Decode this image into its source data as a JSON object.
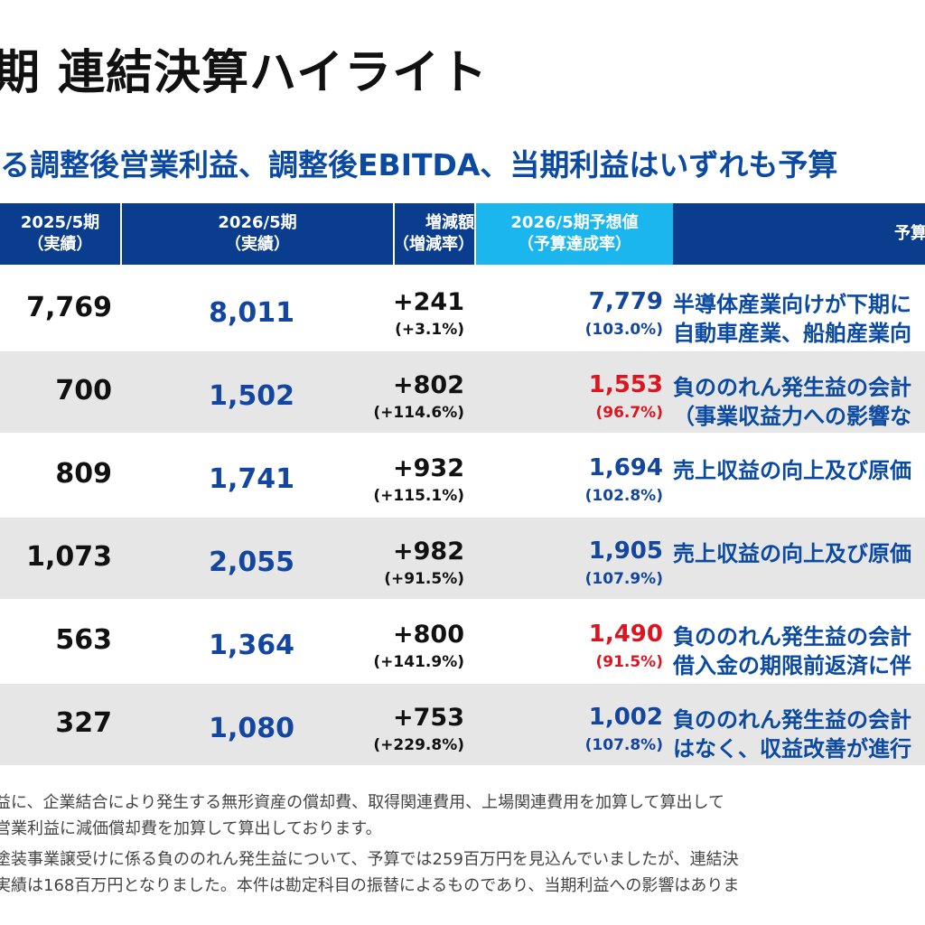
{
  "title": "期 連結決算ハイライト",
  "subtitle": "る調整後営業利益、調整後EBITDA、当期利益はいずれも予算",
  "header": {
    "col1": [
      "2025/5期",
      "（実績）"
    ],
    "col2": [
      "2026/5期",
      "（実績）"
    ],
    "col3": [
      "増減額",
      "（増減率）"
    ],
    "col4": [
      "2026/5期予想値",
      "（予算達成率）"
    ],
    "col5": "予算"
  },
  "rows": [
    {
      "v2025": "7,769",
      "v2026": "8,011",
      "change": "+241",
      "change_rate": "(+3.1%)",
      "forecast": "7,779",
      "achievement": "(103.0%)",
      "below_budget": false,
      "comment1": "半導体産業向けが下期に",
      "comment2": "自動車産業、船舶産業向"
    },
    {
      "v2025": "700",
      "v2026": "1,502",
      "change": "+802",
      "change_rate": "(+114.6%)",
      "forecast": "1,553",
      "achievement": "(96.7%)",
      "below_budget": true,
      "comment1": "負ののれん発生益の会計",
      "comment2": "（事業収益力への影響な"
    },
    {
      "v2025": "809",
      "v2026": "1,741",
      "change": "+932",
      "change_rate": "(+115.1%)",
      "forecast": "1,694",
      "achievement": "(102.8%)",
      "below_budget": false,
      "comment1": "売上収益の向上及び原価",
      "comment2": ""
    },
    {
      "v2025": "1,073",
      "v2026": "2,055",
      "change": "+982",
      "change_rate": "(+91.5%)",
      "forecast": "1,905",
      "achievement": "(107.9%)",
      "below_budget": false,
      "comment1": "売上収益の向上及び原価",
      "comment2": ""
    },
    {
      "v2025": "563",
      "v2026": "1,364",
      "change": "+800",
      "change_rate": "(+141.9%)",
      "forecast": "1,490",
      "achievement": "(91.5%)",
      "below_budget": true,
      "comment1": "負ののれん発生益の会計",
      "comment2": "借入金の期限前返済に伴"
    },
    {
      "v2025": "327",
      "v2026": "1,080",
      "change": "+753",
      "change_rate": "(+229.8%)",
      "forecast": "1,002",
      "achievement": "(107.8%)",
      "below_budget": false,
      "comment1": "負ののれん発生益の会計",
      "comment2": "はなく、収益改善が進行"
    }
  ],
  "notes": [
    "益に、企業結合により発生する無形資産の償却費、取得関連費用、上場関連費用を加算して算出して",
    "営業利益に減価償却費を加算して算出しております。",
    "塗装事業譲受けに係る負ののれん発生益について、予算では259百万円を見込んでいましたが、連結決",
    "実績は168百万円となりました。本件は勘定科目の振替によるものであり、当期利益への影響はありま"
  ],
  "colors": {
    "header_bg": "#0b3d8f",
    "forecast_header_bg": "#1cb6ee",
    "value_blue": "#1346a0",
    "alert_red": "#e0141e",
    "row_shade": "#e6e6e6"
  }
}
